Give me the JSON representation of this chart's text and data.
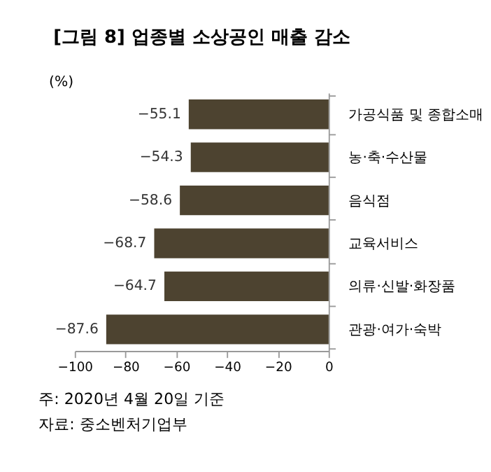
{
  "chart_data": {
    "type": "bar",
    "orientation": "horizontal",
    "title": "[그림 8] 업종별 소상공인 매출 감소",
    "ylabel": "(%)",
    "categories": [
      "가공식품 및 종합소매",
      "농·축·수산물",
      "음식점",
      "교육서비스",
      "의류·신발·화장품",
      "관광·여가·숙박"
    ],
    "values": [
      -55.1,
      -54.3,
      -58.6,
      -68.7,
      -64.7,
      -87.6
    ],
    "color": "#4d4330",
    "xlim": [
      -100,
      0
    ],
    "xticks": [
      -100,
      -80,
      -60,
      -40,
      -20,
      0
    ],
    "grid": false,
    "data_labels": true,
    "annotations": [
      "주: 2020년 4월 20일 기준",
      "자료: 중소벤처기업부"
    ]
  }
}
